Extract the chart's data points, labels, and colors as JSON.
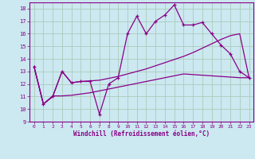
{
  "xlabel": "Windchill (Refroidissement éolien,°C)",
  "background_color": "#cce8f0",
  "grid_color": "#aaccbb",
  "line_color": "#880088",
  "xlim": [
    -0.5,
    23.5
  ],
  "ylim": [
    9,
    18.5
  ],
  "xticks": [
    0,
    1,
    2,
    3,
    4,
    5,
    6,
    7,
    8,
    9,
    10,
    11,
    12,
    13,
    14,
    15,
    16,
    17,
    18,
    19,
    20,
    21,
    22,
    23
  ],
  "yticks": [
    9,
    10,
    11,
    12,
    13,
    14,
    15,
    16,
    17,
    18
  ],
  "line1_x": [
    0,
    1,
    2,
    3,
    4,
    5,
    6,
    7,
    8,
    9,
    10,
    11,
    12,
    13,
    14,
    15,
    16,
    17,
    18,
    19,
    20,
    21,
    22,
    23
  ],
  "line1_y": [
    13.4,
    10.4,
    11.0,
    13.0,
    12.1,
    12.2,
    12.2,
    9.6,
    12.0,
    12.5,
    16.0,
    17.4,
    16.0,
    17.0,
    17.5,
    18.3,
    16.7,
    16.7,
    16.9,
    16.0,
    15.1,
    14.4,
    13.0,
    12.5
  ],
  "line2_x": [
    0,
    1,
    2,
    3,
    4,
    5,
    6,
    7,
    8,
    9,
    10,
    11,
    12,
    13,
    14,
    15,
    16,
    17,
    18,
    19,
    20,
    21,
    22,
    23
  ],
  "line2_y": [
    13.4,
    10.4,
    11.0,
    13.0,
    12.1,
    12.2,
    12.25,
    12.3,
    12.45,
    12.6,
    12.8,
    13.0,
    13.2,
    13.45,
    13.7,
    13.95,
    14.2,
    14.5,
    14.85,
    15.2,
    15.55,
    15.85,
    16.0,
    12.5
  ],
  "line3_x": [
    0,
    1,
    2,
    3,
    4,
    5,
    6,
    7,
    8,
    9,
    10,
    11,
    12,
    13,
    14,
    15,
    16,
    17,
    18,
    19,
    20,
    21,
    22,
    23
  ],
  "line3_y": [
    13.4,
    10.4,
    11.05,
    11.05,
    11.1,
    11.2,
    11.3,
    11.45,
    11.6,
    11.75,
    11.9,
    12.05,
    12.2,
    12.35,
    12.5,
    12.65,
    12.8,
    12.75,
    12.7,
    12.65,
    12.6,
    12.55,
    12.5,
    12.5
  ]
}
